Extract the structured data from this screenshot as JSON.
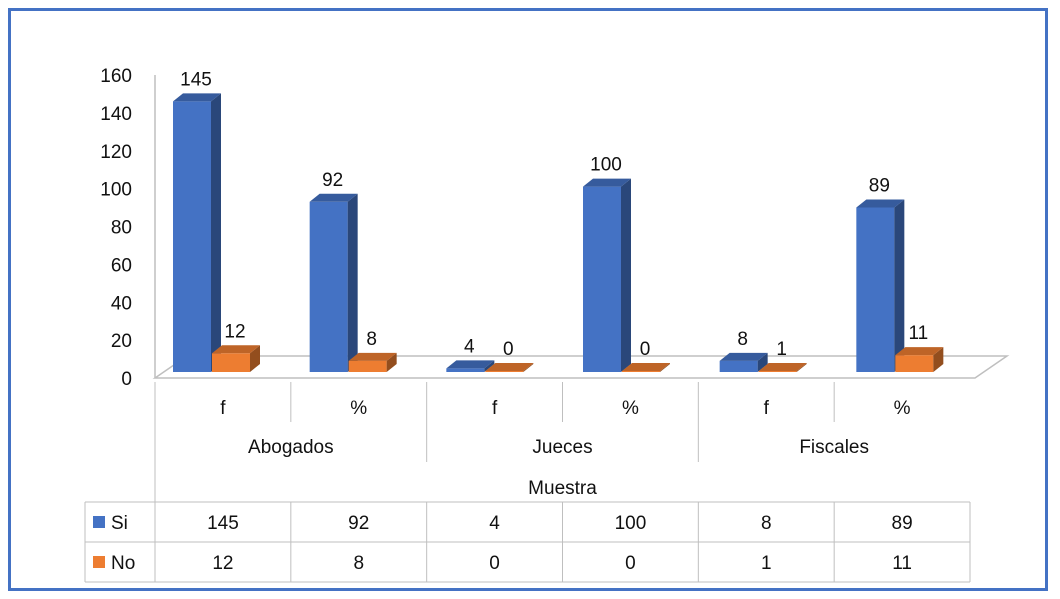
{
  "chart_data": {
    "type": "bar",
    "title": "",
    "xlabel": "Muestra",
    "ylabel": "",
    "ylim": [
      0,
      160
    ],
    "yticks": [
      0,
      20,
      40,
      60,
      80,
      100,
      120,
      140,
      160
    ],
    "grid": false,
    "groups": [
      "Abogados",
      "Jueces",
      "Fiscales"
    ],
    "categories": [
      "f",
      "%",
      "f",
      "%",
      "f",
      "%"
    ],
    "series": [
      {
        "name": "Si",
        "color": "#4472c4",
        "values": [
          145,
          92,
          4,
          100,
          8,
          89
        ]
      },
      {
        "name": "No",
        "color": "#ed7d31",
        "values": [
          12,
          8,
          0,
          0,
          1,
          11
        ]
      }
    ],
    "legend": "data-table"
  }
}
